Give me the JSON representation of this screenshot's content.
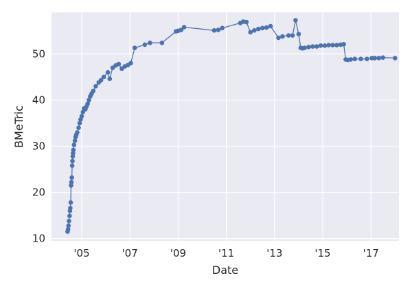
{
  "chart_data": {
    "type": "line",
    "title": "",
    "xlabel": "Date",
    "ylabel": "BMeTric",
    "xlim": [
      "2003-10-01",
      "2018-03-01"
    ],
    "ylim": [
      9.5,
      59
    ],
    "x_ticks": [
      {
        "date": "2005-01-01",
        "label": "'05"
      },
      {
        "date": "2007-01-01",
        "label": "'07"
      },
      {
        "date": "2009-01-01",
        "label": "'09"
      },
      {
        "date": "2011-01-01",
        "label": "'11"
      },
      {
        "date": "2013-01-01",
        "label": "'13"
      },
      {
        "date": "2015-01-01",
        "label": "'15"
      },
      {
        "date": "2017-01-01",
        "label": "'17"
      }
    ],
    "y_ticks": [
      10,
      20,
      30,
      40,
      50
    ],
    "grid": true,
    "legend": "none",
    "colors": {
      "background": "#eaeaf2",
      "grid": "#ffffff",
      "series": "#4c72b0"
    },
    "series": [
      {
        "points": [
          [
            "2004-06-01",
            11.5
          ],
          [
            "2004-06-08",
            12.0
          ],
          [
            "2004-06-15",
            12.8
          ],
          [
            "2004-06-22",
            13.8
          ],
          [
            "2004-07-01",
            14.9
          ],
          [
            "2004-07-07",
            16.0
          ],
          [
            "2004-07-12",
            16.6
          ],
          [
            "2004-07-18",
            17.8
          ],
          [
            "2004-07-24",
            21.5
          ],
          [
            "2004-07-29",
            22.2
          ],
          [
            "2004-08-04",
            23.2
          ],
          [
            "2004-08-09",
            25.8
          ],
          [
            "2004-08-13",
            26.8
          ],
          [
            "2004-08-18",
            27.8
          ],
          [
            "2004-08-23",
            28.5
          ],
          [
            "2004-08-28",
            29.2
          ],
          [
            "2004-09-06",
            30.3
          ],
          [
            "2004-09-20",
            31.2
          ],
          [
            "2004-10-01",
            32.0
          ],
          [
            "2004-10-12",
            32.5
          ],
          [
            "2004-10-25",
            33.0
          ],
          [
            "2004-11-15",
            34.0
          ],
          [
            "2004-12-01",
            35.0
          ],
          [
            "2004-12-15",
            35.8
          ],
          [
            "2005-01-01",
            36.5
          ],
          [
            "2005-01-20",
            37.4
          ],
          [
            "2005-02-05",
            38.2
          ],
          [
            "2005-02-25",
            38.0
          ],
          [
            "2005-03-15",
            38.6
          ],
          [
            "2005-04-01",
            39.2
          ],
          [
            "2005-04-20",
            40.0
          ],
          [
            "2005-05-10",
            40.8
          ],
          [
            "2005-06-01",
            41.4
          ],
          [
            "2005-06-25",
            42.0
          ],
          [
            "2005-08-01",
            43.0
          ],
          [
            "2005-09-15",
            43.8
          ],
          [
            "2005-10-20",
            44.3
          ],
          [
            "2005-12-01",
            45.0
          ],
          [
            "2006-02-01",
            46.0
          ],
          [
            "2006-03-01",
            44.6
          ],
          [
            "2006-04-15",
            47.0
          ],
          [
            "2006-06-01",
            47.5
          ],
          [
            "2006-07-15",
            47.8
          ],
          [
            "2006-09-01",
            46.8
          ],
          [
            "2006-10-15",
            47.3
          ],
          [
            "2006-12-01",
            47.6
          ],
          [
            "2007-01-15",
            48.0
          ],
          [
            "2007-03-15",
            51.3
          ],
          [
            "2007-08-15",
            52.0
          ],
          [
            "2007-11-01",
            52.4
          ],
          [
            "2008-05-01",
            52.4
          ],
          [
            "2008-12-01",
            54.9
          ],
          [
            "2009-01-01",
            55.0
          ],
          [
            "2009-02-15",
            55.2
          ],
          [
            "2009-04-01",
            55.8
          ],
          [
            "2010-07-01",
            55.1
          ],
          [
            "2010-09-01",
            55.2
          ],
          [
            "2010-11-01",
            55.6
          ],
          [
            "2011-08-01",
            56.7
          ],
          [
            "2011-09-15",
            57.0
          ],
          [
            "2011-11-01",
            56.9
          ],
          [
            "2012-01-01",
            54.7
          ],
          [
            "2012-03-01",
            55.1
          ],
          [
            "2012-05-01",
            55.4
          ],
          [
            "2012-07-01",
            55.6
          ],
          [
            "2012-09-01",
            55.7
          ],
          [
            "2012-11-01",
            56.0
          ],
          [
            "2013-03-01",
            53.5
          ],
          [
            "2013-05-01",
            53.8
          ],
          [
            "2013-08-01",
            54.0
          ],
          [
            "2013-10-01",
            54.0
          ],
          [
            "2013-11-15",
            57.3
          ],
          [
            "2014-01-01",
            54.3
          ],
          [
            "2014-02-01",
            51.3
          ],
          [
            "2014-03-01",
            51.2
          ],
          [
            "2014-04-01",
            51.3
          ],
          [
            "2014-06-01",
            51.5
          ],
          [
            "2014-08-01",
            51.6
          ],
          [
            "2014-10-01",
            51.6
          ],
          [
            "2014-12-01",
            51.8
          ],
          [
            "2015-02-01",
            51.8
          ],
          [
            "2015-04-01",
            51.9
          ],
          [
            "2015-06-01",
            51.9
          ],
          [
            "2015-08-01",
            51.9
          ],
          [
            "2015-10-01",
            52.0
          ],
          [
            "2015-11-15",
            52.1
          ],
          [
            "2015-12-15",
            48.8
          ],
          [
            "2016-01-15",
            48.7
          ],
          [
            "2016-03-01",
            48.8
          ],
          [
            "2016-05-01",
            48.9
          ],
          [
            "2016-08-01",
            48.9
          ],
          [
            "2016-11-01",
            48.9
          ],
          [
            "2017-01-15",
            49.1
          ],
          [
            "2017-03-01",
            49.1
          ],
          [
            "2017-05-01",
            49.1
          ],
          [
            "2017-07-01",
            49.2
          ],
          [
            "2018-01-01",
            49.1
          ]
        ]
      }
    ]
  }
}
